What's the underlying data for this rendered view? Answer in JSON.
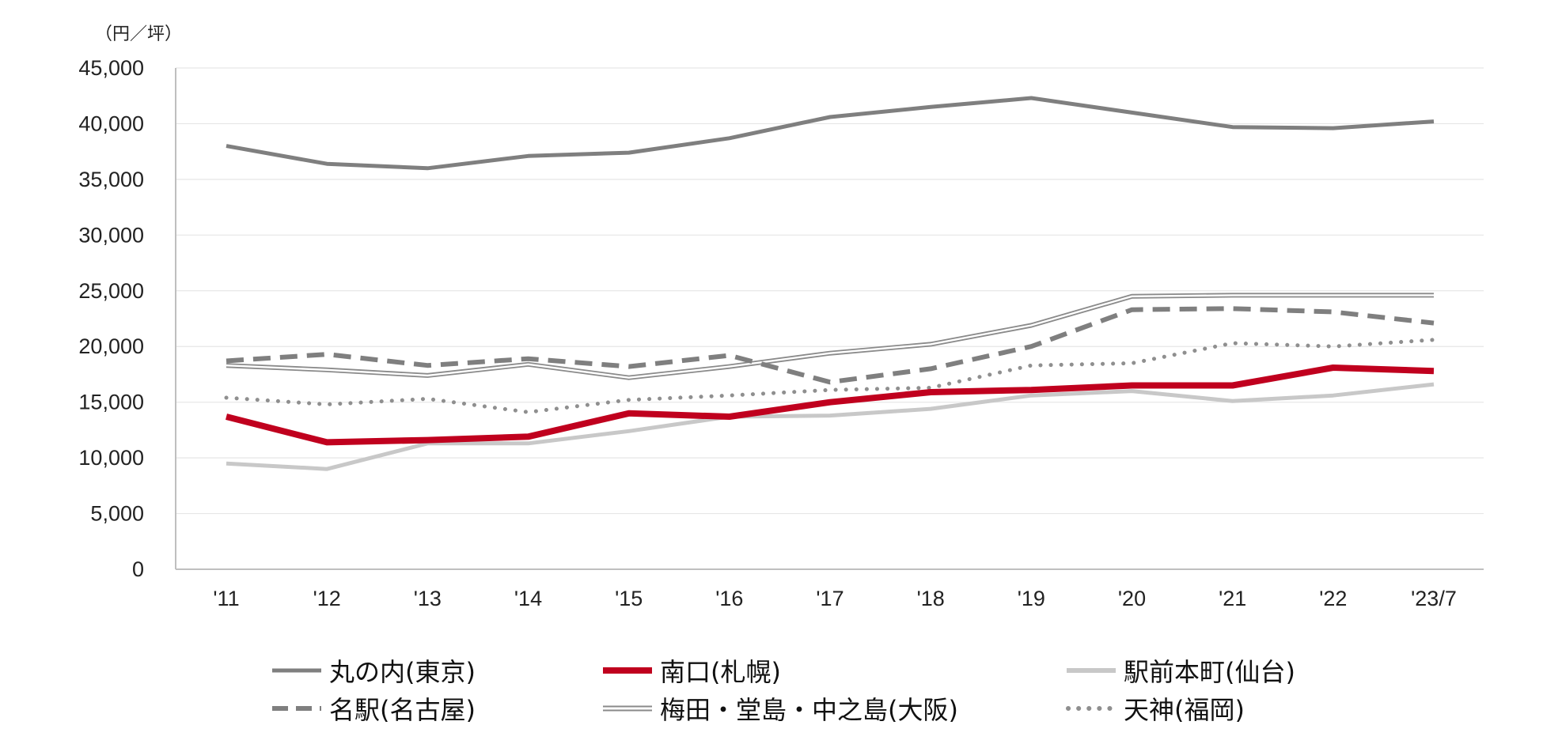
{
  "chart_data": {
    "type": "line",
    "unit_label": "（円／坪）",
    "categories": [
      "'11",
      "'12",
      "'13",
      "'14",
      "'15",
      "'16",
      "'17",
      "'18",
      "'19",
      "'20",
      "'21",
      "'22",
      "'23/7"
    ],
    "ylim": [
      0,
      45000
    ],
    "yticks": [
      0,
      5000,
      10000,
      15000,
      20000,
      25000,
      30000,
      35000,
      40000,
      45000
    ],
    "ytick_labels": [
      "0",
      "5,000",
      "10,000",
      "15,000",
      "20,000",
      "25,000",
      "30,000",
      "35,000",
      "40,000",
      "45,000"
    ],
    "grid": true,
    "legend_position": "bottom",
    "series": [
      {
        "name": "丸の内(東京)",
        "style": "solid",
        "color": "#7f7f7f",
        "values": [
          38000,
          36400,
          36000,
          37100,
          37400,
          38700,
          40600,
          41500,
          42300,
          41000,
          39700,
          39600,
          40200
        ]
      },
      {
        "name": "南口(札幌)",
        "style": "solid-thick",
        "color": "#c0001e",
        "values": [
          13700,
          11400,
          11600,
          11900,
          14000,
          13700,
          15000,
          15900,
          16100,
          16500,
          16500,
          18100,
          17800
        ]
      },
      {
        "name": "駅前本町(仙台)",
        "style": "solid",
        "color": "#c8c8c8",
        "values": [
          9500,
          9000,
          11300,
          11300,
          12400,
          13700,
          13800,
          14400,
          15600,
          16000,
          15100,
          15600,
          16600
        ]
      },
      {
        "name": "名駅(名古屋)",
        "style": "dashed",
        "color": "#7f7f7f",
        "values": [
          18700,
          19300,
          18300,
          18900,
          18200,
          19200,
          16800,
          18000,
          20000,
          23300,
          23400,
          23100,
          22100
        ]
      },
      {
        "name": "梅田・堂島・中之島(大阪)",
        "style": "double",
        "color": "#8a8a8a",
        "values": [
          18300,
          17900,
          17400,
          18400,
          17200,
          18200,
          19400,
          20200,
          21900,
          24500,
          24600,
          24600,
          24600
        ]
      },
      {
        "name": "天神(福岡)",
        "style": "dotted",
        "color": "#8f8f8f",
        "values": [
          15400,
          14800,
          15300,
          14100,
          15200,
          15600,
          16100,
          16300,
          18300,
          18500,
          20300,
          20000,
          20600
        ]
      }
    ]
  }
}
